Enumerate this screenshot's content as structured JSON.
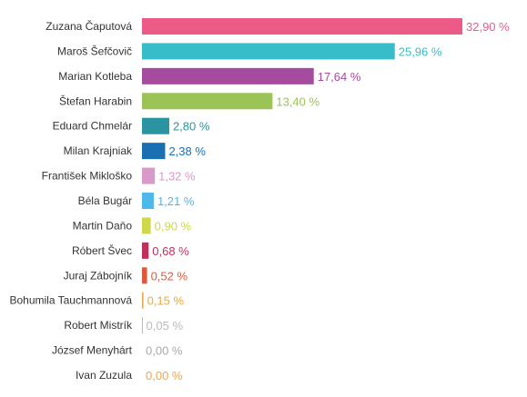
{
  "chart_data": {
    "type": "bar",
    "orientation": "horizontal",
    "categories": [
      "Zuzana Čaputová",
      "Maroš Šefčovič",
      "Marian Kotleba",
      "Štefan Harabin",
      "Eduard Chmelár",
      "Milan Krajniak",
      "František Mikloško",
      "Béla Bugár",
      "Martin Daňo",
      "Róbert Švec",
      "Juraj Zábojník",
      "Bohumila Tauchmannová",
      "Robert Mistrík",
      "József Menyhárt",
      "Ivan Zuzula"
    ],
    "values": [
      32.9,
      25.96,
      17.64,
      13.4,
      2.8,
      2.38,
      1.32,
      1.21,
      0.9,
      0.68,
      0.52,
      0.15,
      0.05,
      0.0,
      0.0
    ],
    "value_labels": [
      "32,90 %",
      "25,96 %",
      "17,64 %",
      "13,40 %",
      "2,80 %",
      "2,38 %",
      "1,32 %",
      "1,21 %",
      "0,90 %",
      "0,68 %",
      "0,52 %",
      "0,15 %",
      "0,05 %",
      "0,00 %",
      "0,00 %"
    ],
    "colors": [
      "#ec5b88",
      "#36bdc9",
      "#a64c9e",
      "#9cc356",
      "#2a95a0",
      "#1a6fb3",
      "#d99ac9",
      "#4fb8ea",
      "#cdd94a",
      "#c2305a",
      "#dd5a3a",
      "#e8a84b",
      "#bbbbbb",
      "#aaaaaa",
      "#f0a54b"
    ],
    "xlim": [
      0,
      32.9
    ],
    "grid": false,
    "legend": "none",
    "title": "",
    "xlabel": "",
    "ylabel": ""
  }
}
